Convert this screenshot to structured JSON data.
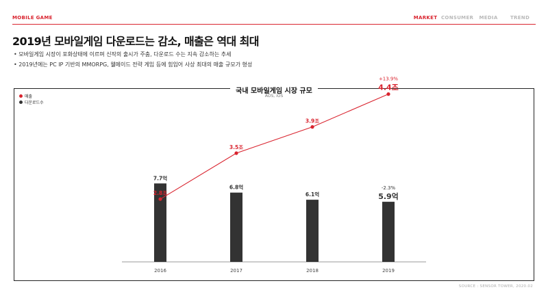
{
  "header": {
    "section": "MOBILE GAME",
    "nav": [
      {
        "label": "MARKET",
        "active": true
      },
      {
        "label": "CONSUMER",
        "active": false
      },
      {
        "label": "MEDIA",
        "active": false
      },
      {
        "label": "TREND",
        "active": false
      }
    ]
  },
  "headline": "2019년 모바일게임 다운로드는 감소, 매출은 역대 최대",
  "bullets": [
    "모바일게임 시장이 포화상태에 이르며 신작의 출시가 주춤, 다운로드 수는 지속 감소하는 추세",
    "2019년에는 PC IP 기반의 MMORPG, 웰메이드 전략 게임 등에 힘입어 사상 최대의 매출 규모가 형성"
  ],
  "source": "SOURCE : SENSOR TOWER, 2020.02",
  "colors": {
    "accent": "#d9232e",
    "bar": "#333333",
    "axis": "#9a9a9a"
  },
  "chart_data": {
    "type": "bar",
    "title": "국내 모바일게임 시장 규모",
    "subtitle": "AOS, iOS",
    "legend_position": "top-left",
    "categories": [
      "2016",
      "2017",
      "2018",
      "2019"
    ],
    "series": [
      {
        "name": "매출",
        "kind": "line",
        "color": "#d9232e",
        "values": [
          2.8,
          3.5,
          3.9,
          4.4
        ],
        "labels": [
          "2.8조",
          "3.5조",
          "3.9조",
          "4.4조"
        ],
        "change_label": "+13.9%"
      },
      {
        "name": "다운로드수",
        "kind": "bar",
        "color": "#333333",
        "values": [
          7.7,
          6.8,
          6.1,
          5.9
        ],
        "labels": [
          "7.7억",
          "6.8억",
          "6.1억",
          "5.9억"
        ],
        "change_label": "-2.3%"
      }
    ]
  }
}
